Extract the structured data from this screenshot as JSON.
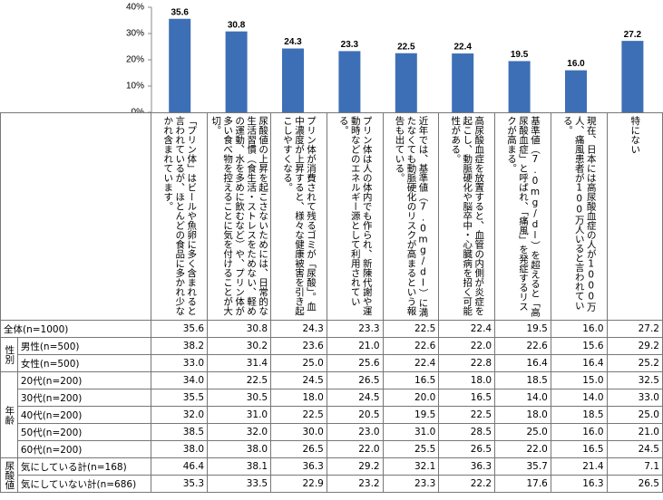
{
  "chart_data": {
    "type": "bar",
    "values": [
      35.6,
      30.8,
      24.3,
      23.3,
      22.5,
      22.4,
      19.5,
      16.0,
      27.2
    ],
    "value_labels": [
      "35.6",
      "30.8",
      "24.3",
      "23.3",
      "22.5",
      "22.4",
      "19.5",
      "16.0",
      "27.2"
    ],
    "color": "#3d6fb6",
    "ylim": [
      0,
      40
    ],
    "yticks": [
      {
        "value": 0,
        "label": "0%"
      },
      {
        "value": 10,
        "label": "10%"
      },
      {
        "value": 20,
        "label": "20%"
      },
      {
        "value": 30,
        "label": "30%"
      },
      {
        "value": 40,
        "label": "40%"
      }
    ]
  },
  "table": {
    "columns": [
      "「プリン体」はビールや魚卵に多く含まれると言われているが、ほとんどの食品に多かれ少なかれ含まれています。",
      "尿酸値の上昇を起こさないためには、日常的な生活習慣（食生活・ストレスをためない、軽めの運動、水を多めに飲むなど）や、プリン体が多い食べ物を控えることに気を付けることが大切。",
      "プリン体が消費されて残るゴミが「尿酸」。血中濃度が上昇すると、様々な健康被害を引き起こしやすくなる。",
      "プリン体は人の体内でも作られ、新陳代謝や運動時などのエネルギー源として利用されている。",
      "近年では、基準値（7.0mg/dl）に満たなくても動脈硬化のリスクが高まるという報告も出ている。",
      "高尿酸血症を放置すると、血管の内側が炎症を起こし、動脈硬化や脳卒中・心臓病を招く可能性がある。",
      "基準値（7.0mg/dl）を超えると「高尿酸血症」と呼ばれ、「痛風」を発症するリスクが高まる。",
      "現在、日本には高尿酸血症の人が1000万人、痛風患者が100万人いると言われている。",
      "特にない"
    ],
    "groups": [
      {
        "rows": [
          {
            "label": "全体(n=1000)",
            "values": [
              "35.6",
              "30.8",
              "24.3",
              "23.3",
              "22.5",
              "22.4",
              "19.5",
              "16.0",
              "27.2"
            ]
          }
        ]
      },
      {
        "label": "性別",
        "rows": [
          {
            "label": "男性(n=500)",
            "values": [
              "38.2",
              "30.2",
              "23.6",
              "21.0",
              "22.6",
              "22.0",
              "22.6",
              "15.6",
              "29.2"
            ]
          },
          {
            "label": "女性(n=500)",
            "values": [
              "33.0",
              "31.4",
              "25.0",
              "25.6",
              "22.4",
              "22.8",
              "16.4",
              "16.4",
              "25.2"
            ]
          }
        ]
      },
      {
        "label": "年齢",
        "rows": [
          {
            "label": "20代(n=200)",
            "values": [
              "34.0",
              "22.5",
              "24.5",
              "26.5",
              "16.5",
              "18.0",
              "18.5",
              "15.0",
              "32.5"
            ]
          },
          {
            "label": "30代(n=200)",
            "values": [
              "35.5",
              "30.5",
              "18.0",
              "24.5",
              "20.0",
              "16.5",
              "14.0",
              "14.0",
              "33.0"
            ]
          },
          {
            "label": "40代(n=200)",
            "values": [
              "32.0",
              "31.0",
              "22.5",
              "20.5",
              "19.5",
              "22.5",
              "18.0",
              "18.5",
              "25.0"
            ]
          },
          {
            "label": "50代(n=200)",
            "values": [
              "38.5",
              "32.0",
              "30.0",
              "23.0",
              "31.0",
              "28.5",
              "25.0",
              "16.0",
              "21.0"
            ]
          },
          {
            "label": "60代(n=200)",
            "values": [
              "38.0",
              "38.0",
              "26.5",
              "22.0",
              "25.5",
              "26.5",
              "22.0",
              "16.5",
              "24.5"
            ]
          }
        ]
      },
      {
        "label": "尿酸値",
        "rows": [
          {
            "label": "気にしている計(n=168)",
            "values": [
              "46.4",
              "38.1",
              "36.3",
              "29.2",
              "32.1",
              "36.3",
              "35.7",
              "21.4",
              "7.1"
            ]
          },
          {
            "label": "気にしていない計(n=686)",
            "values": [
              "35.3",
              "33.5",
              "22.9",
              "23.2",
              "23.3",
              "22.2",
              "17.6",
              "16.3",
              "26.5"
            ]
          }
        ]
      }
    ]
  }
}
